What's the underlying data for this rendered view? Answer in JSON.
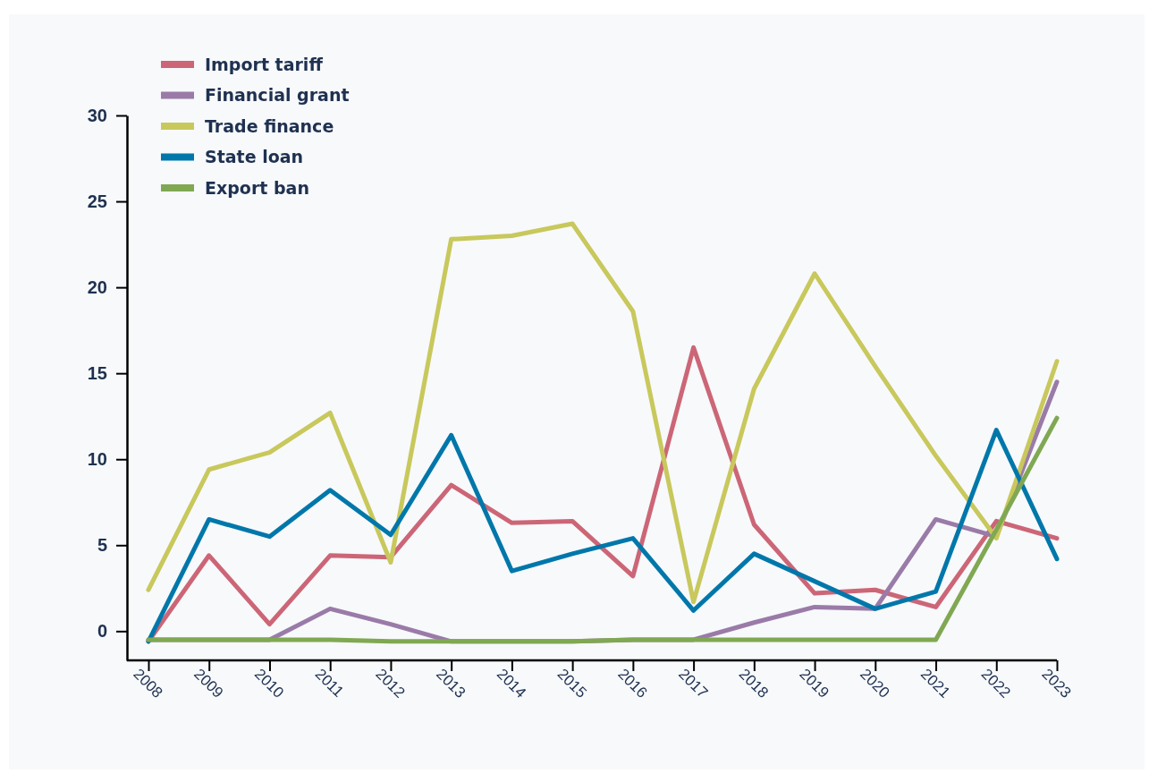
{
  "chart_data": {
    "type": "line",
    "categories": [
      "2008",
      "2009",
      "2010",
      "2011",
      "2012",
      "2013",
      "2014",
      "2015",
      "2016",
      "2017",
      "2018",
      "2019",
      "2020",
      "2021",
      "2022",
      "2023"
    ],
    "series": [
      {
        "name": "Import tariff",
        "color": "#cc6677",
        "values": [
          -0.6,
          4.4,
          0.4,
          4.4,
          4.3,
          8.5,
          6.3,
          6.4,
          3.2,
          16.5,
          6.2,
          2.2,
          2.4,
          1.4,
          6.4,
          5.4
        ]
      },
      {
        "name": "Financial grant",
        "color": "#9a7ba8",
        "values": [
          -0.5,
          -0.5,
          -0.5,
          1.3,
          0.4,
          -0.6,
          -0.6,
          -0.6,
          -0.5,
          -0.5,
          0.5,
          1.4,
          1.3,
          6.5,
          5.5,
          14.5
        ]
      },
      {
        "name": "Trade finance",
        "color": "#c8c85c",
        "values": [
          2.4,
          9.4,
          10.4,
          12.7,
          4.0,
          22.8,
          23.0,
          23.7,
          18.6,
          1.7,
          14.1,
          20.8,
          15.4,
          10.2,
          5.4,
          15.7
        ]
      },
      {
        "name": "State loan",
        "color": "#0077aa",
        "values": [
          -0.6,
          6.5,
          5.5,
          8.2,
          5.6,
          11.4,
          3.5,
          4.5,
          5.4,
          1.2,
          4.5,
          2.9,
          1.3,
          2.3,
          11.7,
          4.2
        ]
      },
      {
        "name": "Export ban",
        "color": "#80a852",
        "values": [
          -0.5,
          -0.5,
          -0.5,
          -0.5,
          -0.6,
          -0.6,
          -0.6,
          -0.6,
          -0.5,
          -0.5,
          -0.5,
          -0.5,
          -0.5,
          -0.5,
          5.9,
          12.4
        ]
      }
    ],
    "ylim": [
      -1.7,
      30
    ],
    "yticks": [
      0,
      5,
      10,
      15,
      20,
      25,
      30
    ],
    "legend": "top left",
    "grid": false
  }
}
